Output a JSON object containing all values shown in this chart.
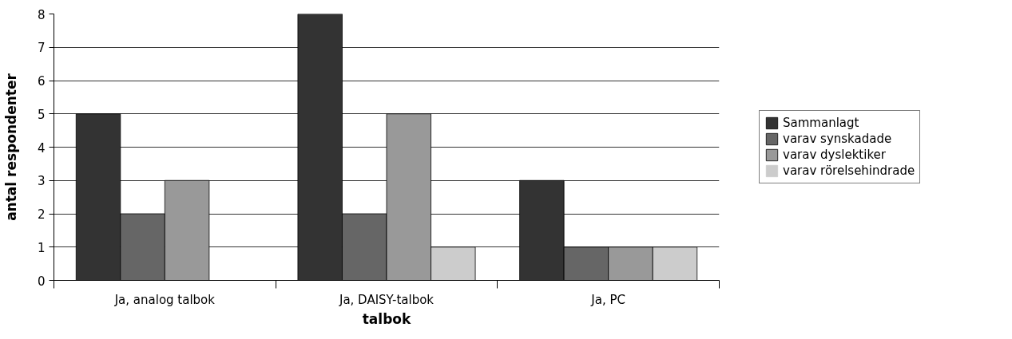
{
  "chart_data": {
    "type": "bar",
    "xlabel": "talbok",
    "ylabel": "antal respondenter",
    "categories": [
      "Ja, analog talbok",
      "Ja, DAISY-talbok",
      "Ja, PC"
    ],
    "series": [
      {
        "name": "Sammanlagt",
        "color": "#333333",
        "values": [
          5,
          8,
          3
        ]
      },
      {
        "name": "varav synskadade",
        "color": "#666666",
        "values": [
          2,
          2,
          1
        ]
      },
      {
        "name": "varav dyslektiker",
        "color": "#999999",
        "values": [
          3,
          5,
          1
        ]
      },
      {
        "name": "varav rörelsehindrade",
        "color": "#cccccc",
        "values": [
          0,
          1,
          1
        ]
      }
    ],
    "ylim": [
      0,
      8
    ],
    "yticks": [
      0,
      1,
      2,
      3,
      4,
      5,
      6,
      7,
      8
    ],
    "grid": "y",
    "legend": "right"
  }
}
